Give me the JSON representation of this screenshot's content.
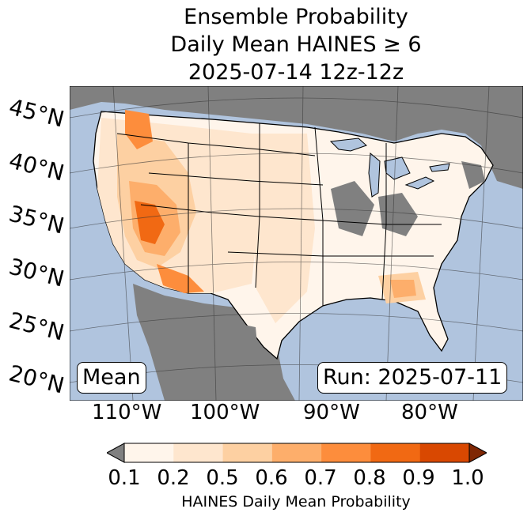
{
  "title": {
    "line1": "Ensemble Probability",
    "line2": "Daily Mean HAINES ≥ 6",
    "line3": "2025-07-14 12z-12z"
  },
  "map": {
    "lat_labels": [
      "45°N",
      "40°N",
      "35°N",
      "30°N",
      "25°N",
      "20°N"
    ],
    "lon_labels": [
      "110°W",
      "100°W",
      "90°W",
      "80°W"
    ],
    "mean_label": "Mean",
    "run_label": "Run: 2025-07-11",
    "colors": {
      "ocean": "#b0c4de",
      "masked": "#808080",
      "low": "#fff5eb",
      "border": "#000000"
    }
  },
  "colorbar": {
    "label": "HAINES Daily Mean Probability",
    "ticks": [
      "0.1",
      "0.2",
      "0.5",
      "0.6",
      "0.7",
      "0.8",
      "0.9",
      "1.0"
    ],
    "under_color": "#808080",
    "over_color": "#7f2704",
    "colors": [
      "#fff5eb",
      "#fee6ce",
      "#fdd0a2",
      "#fdae6b",
      "#fd8d3c",
      "#f16913",
      "#d94801"
    ]
  }
}
